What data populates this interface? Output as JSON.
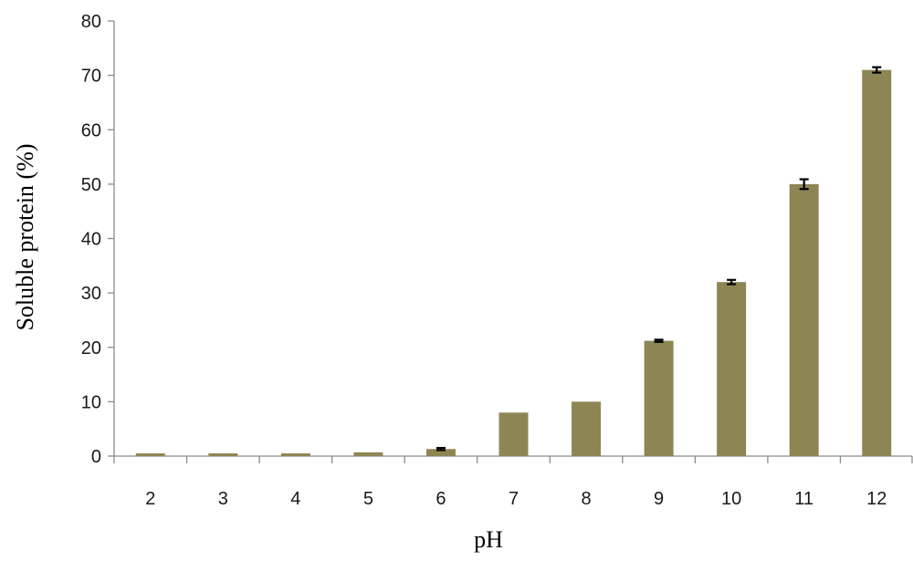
{
  "chart_data": {
    "type": "bar",
    "title": "",
    "xlabel": "pH",
    "ylabel": "Soluble protein (%)",
    "categories": [
      "2",
      "3",
      "4",
      "5",
      "6",
      "7",
      "8",
      "9",
      "10",
      "11",
      "12"
    ],
    "values": [
      0.5,
      0.5,
      0.5,
      0.7,
      1.3,
      8.0,
      10.0,
      21.2,
      32.0,
      50.0,
      71.0
    ],
    "errors": [
      0,
      0,
      0,
      0,
      0.2,
      0,
      0,
      0.2,
      0.4,
      0.9,
      0.5
    ],
    "ylim": [
      0,
      80
    ],
    "yticks": [
      0,
      10,
      20,
      30,
      40,
      50,
      60,
      70,
      80
    ],
    "grid": false,
    "legend": "none",
    "bar_color": "#8e8555"
  }
}
